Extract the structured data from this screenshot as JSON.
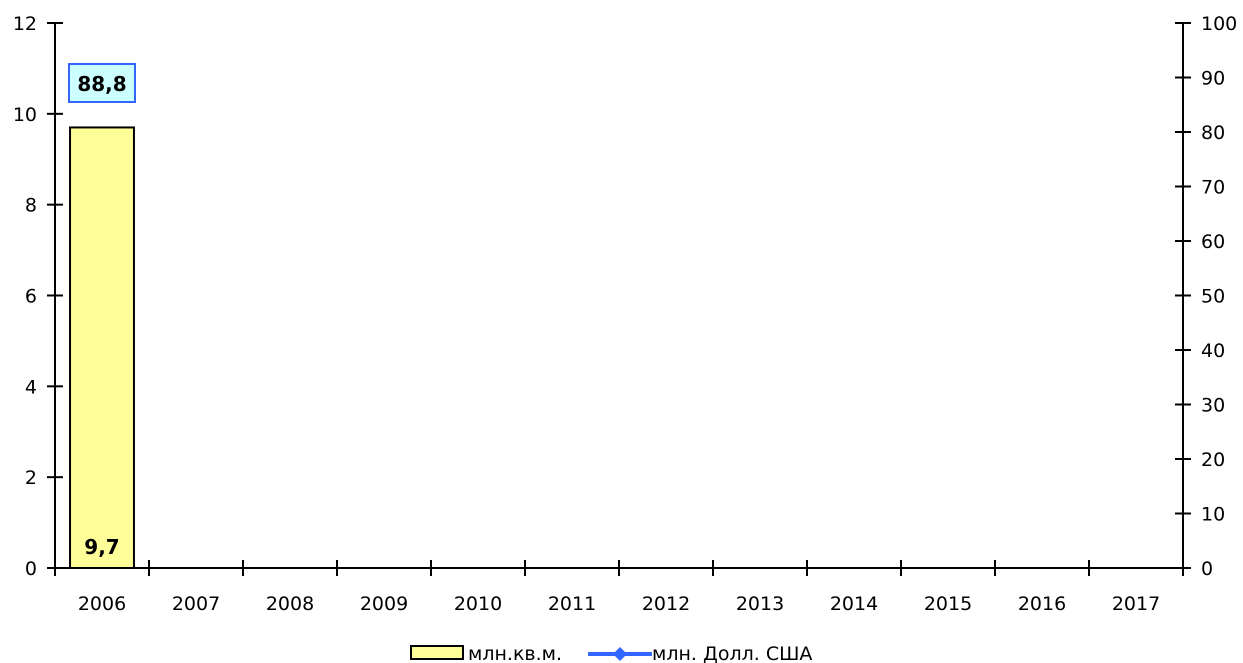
{
  "chart_data": {
    "type": "bar",
    "categories": [
      "2006",
      "2007",
      "2008",
      "2009",
      "2010",
      "2011",
      "2012",
      "2013",
      "2014",
      "2015",
      "2016",
      "2017"
    ],
    "series": [
      {
        "name": "млн.кв.м.",
        "axis": "left",
        "mark": "bar",
        "color": "#ffff99",
        "values": [
          9.7,
          null,
          null,
          null,
          null,
          null,
          null,
          null,
          null,
          null,
          null,
          null
        ],
        "labels": [
          "9,7",
          "",
          "",
          "",
          "",
          "",
          "",
          "",
          "",
          "",
          "",
          ""
        ]
      },
      {
        "name": "млн. Долл. США",
        "axis": "right",
        "mark": "line",
        "color": "#3366ff",
        "values": [
          88.8,
          null,
          null,
          null,
          null,
          null,
          null,
          null,
          null,
          null,
          null,
          null
        ],
        "labels": [
          "88,8",
          "",
          "",
          "",
          "",
          "",
          "",
          "",
          "",
          "",
          "",
          ""
        ]
      }
    ],
    "y_left": {
      "ylim": [
        0,
        12
      ],
      "ticks": [
        0,
        2,
        4,
        6,
        8,
        10,
        12
      ],
      "tick_labels": [
        "0",
        "2",
        "4",
        "6",
        "8",
        "10",
        "12"
      ]
    },
    "y_right": {
      "ylim": [
        0,
        100
      ],
      "ticks": [
        0,
        10,
        20,
        30,
        40,
        50,
        60,
        70,
        80,
        90,
        100
      ],
      "tick_labels": [
        "0",
        "10",
        "20",
        "30",
        "40",
        "50",
        "60",
        "70",
        "80",
        "90",
        "100"
      ]
    },
    "grid": false,
    "legend": {
      "placement": "bottom-center"
    },
    "label_box_color": "#ccffff",
    "label_box_border": "#3366ff"
  }
}
